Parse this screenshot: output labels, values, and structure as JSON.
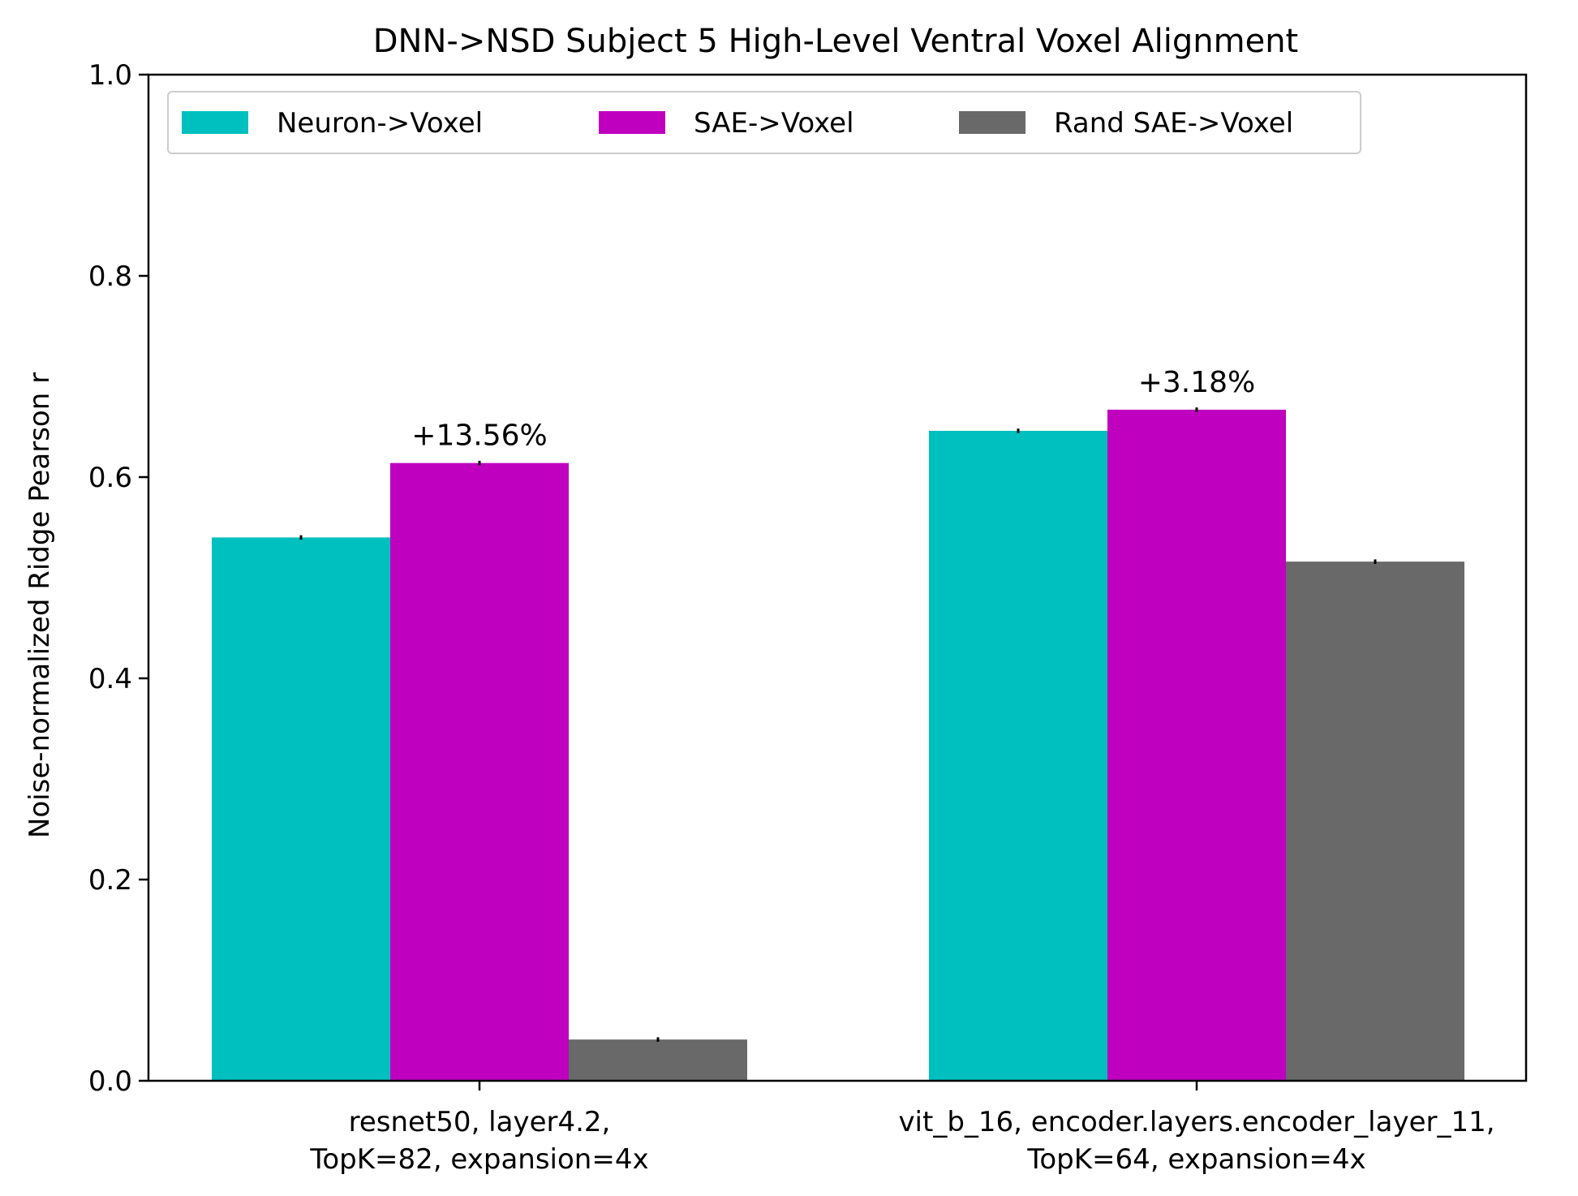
{
  "chart_data": {
    "type": "bar",
    "title": "DNN->NSD Subject 5 High-Level Ventral Voxel Alignment",
    "xlabel": "",
    "ylabel": "Noise-normalized Ridge Pearson r",
    "ylim": [
      0.0,
      1.0
    ],
    "yticks": [
      "0.0",
      "0.2",
      "0.4",
      "0.6",
      "0.8",
      "1.0"
    ],
    "grid": false,
    "legend_position": "top-left",
    "categories": [
      [
        "resnet50, layer4.2,",
        "TopK=82, expansion=4x"
      ],
      [
        "vit_b_16, encoder.layers.encoder_layer_11,",
        "TopK=64, expansion=4x"
      ]
    ],
    "series": [
      {
        "name": "Neuron->Voxel",
        "color": "#00bfbf",
        "values": [
          0.54,
          0.646
        ],
        "errors": [
          0.001,
          0.001
        ]
      },
      {
        "name": "SAE->Voxel",
        "color": "#bf00bf",
        "values": [
          0.614,
          0.667
        ],
        "errors": [
          0.001,
          0.001
        ]
      },
      {
        "name": "Rand SAE->Voxel",
        "color": "#696969",
        "values": [
          0.041,
          0.516
        ],
        "errors": [
          0.001,
          0.001
        ]
      }
    ],
    "annotations": [
      {
        "category_index": 0,
        "series_index": 1,
        "text": "+13.56%"
      },
      {
        "category_index": 1,
        "series_index": 1,
        "text": "+3.18%"
      }
    ]
  }
}
